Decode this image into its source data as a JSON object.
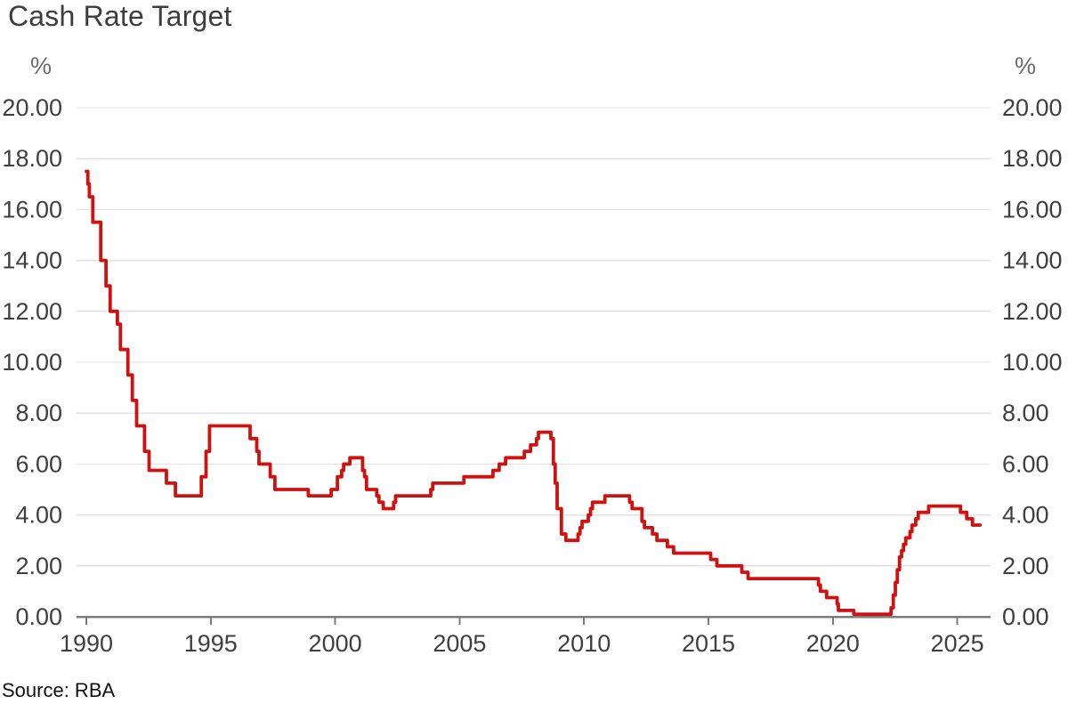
{
  "title": "Cash Rate Target",
  "source_label": "Source: RBA",
  "y_axis": {
    "unit": "%",
    "tick_values": [
      0,
      2,
      4,
      6,
      8,
      10,
      12,
      14,
      16,
      18,
      20
    ],
    "tick_labels": [
      "0.00",
      "2.00",
      "4.00",
      "6.00",
      "8.00",
      "10.00",
      "12.00",
      "14.00",
      "16.00",
      "18.00",
      "20.00"
    ],
    "min": 0,
    "max": 20
  },
  "x_axis": {
    "tick_years": [
      1990,
      1995,
      2000,
      2005,
      2010,
      2015,
      2020,
      2025
    ],
    "tick_labels": [
      "1990",
      "1995",
      "2000",
      "2005",
      "2010",
      "2015",
      "2020",
      "2025"
    ]
  },
  "colors": {
    "line": "#cf1110",
    "grid": "#e2e2e2",
    "axis": "#7c7c7c",
    "tick_text": "#3f3f3f",
    "unit_text": "#6a6a6a",
    "title_text": "#3d3d3d"
  },
  "chart_data": {
    "type": "line",
    "style": "step-after",
    "title": "Cash Rate Target",
    "ylabel": "%",
    "ylim": [
      0,
      20
    ],
    "xlim": [
      1989.6,
      2026.3
    ],
    "grid": "horizontal",
    "legend": "none",
    "series": [
      {
        "name": "Cash Rate Target (%)",
        "points": [
          [
            1990.0,
            17.5
          ],
          [
            1990.06,
            17.0
          ],
          [
            1990.12,
            16.5
          ],
          [
            1990.26,
            15.5
          ],
          [
            1990.58,
            14.0
          ],
          [
            1990.79,
            13.0
          ],
          [
            1990.96,
            12.0
          ],
          [
            1991.25,
            11.5
          ],
          [
            1991.37,
            10.5
          ],
          [
            1991.67,
            9.5
          ],
          [
            1991.85,
            8.5
          ],
          [
            1992.02,
            7.5
          ],
          [
            1992.34,
            6.5
          ],
          [
            1992.52,
            5.75
          ],
          [
            1993.22,
            5.25
          ],
          [
            1993.58,
            4.75
          ],
          [
            1994.62,
            5.5
          ],
          [
            1994.81,
            6.5
          ],
          [
            1994.95,
            7.5
          ],
          [
            1996.58,
            7.0
          ],
          [
            1996.85,
            6.5
          ],
          [
            1996.94,
            6.0
          ],
          [
            1997.39,
            5.5
          ],
          [
            1997.58,
            5.0
          ],
          [
            1998.92,
            4.75
          ],
          [
            1999.84,
            5.0
          ],
          [
            2000.09,
            5.5
          ],
          [
            2000.26,
            5.75
          ],
          [
            2000.34,
            6.0
          ],
          [
            2000.59,
            6.25
          ],
          [
            2001.1,
            5.75
          ],
          [
            2001.18,
            5.5
          ],
          [
            2001.26,
            5.0
          ],
          [
            2001.67,
            4.75
          ],
          [
            2001.76,
            4.5
          ],
          [
            2001.93,
            4.25
          ],
          [
            2002.35,
            4.5
          ],
          [
            2002.43,
            4.75
          ],
          [
            2003.84,
            5.0
          ],
          [
            2003.92,
            5.25
          ],
          [
            2005.17,
            5.5
          ],
          [
            2006.34,
            5.75
          ],
          [
            2006.59,
            6.0
          ],
          [
            2006.85,
            6.25
          ],
          [
            2007.6,
            6.5
          ],
          [
            2007.85,
            6.75
          ],
          [
            2008.09,
            7.0
          ],
          [
            2008.17,
            7.25
          ],
          [
            2008.67,
            7.0
          ],
          [
            2008.77,
            6.0
          ],
          [
            2008.84,
            5.25
          ],
          [
            2008.92,
            4.25
          ],
          [
            2009.09,
            3.25
          ],
          [
            2009.27,
            3.0
          ],
          [
            2009.76,
            3.25
          ],
          [
            2009.84,
            3.5
          ],
          [
            2009.92,
            3.75
          ],
          [
            2010.17,
            4.0
          ],
          [
            2010.26,
            4.25
          ],
          [
            2010.34,
            4.5
          ],
          [
            2010.84,
            4.75
          ],
          [
            2011.83,
            4.5
          ],
          [
            2011.93,
            4.25
          ],
          [
            2012.33,
            3.75
          ],
          [
            2012.43,
            3.5
          ],
          [
            2012.75,
            3.25
          ],
          [
            2012.93,
            3.0
          ],
          [
            2013.35,
            2.75
          ],
          [
            2013.6,
            2.5
          ],
          [
            2015.09,
            2.25
          ],
          [
            2015.34,
            2.0
          ],
          [
            2016.34,
            1.75
          ],
          [
            2016.59,
            1.5
          ],
          [
            2019.42,
            1.25
          ],
          [
            2019.5,
            1.0
          ],
          [
            2019.75,
            0.75
          ],
          [
            2020.17,
            0.5
          ],
          [
            2020.22,
            0.25
          ],
          [
            2020.84,
            0.1
          ],
          [
            2022.34,
            0.35
          ],
          [
            2022.43,
            0.85
          ],
          [
            2022.51,
            1.35
          ],
          [
            2022.59,
            1.85
          ],
          [
            2022.68,
            2.35
          ],
          [
            2022.76,
            2.6
          ],
          [
            2022.84,
            2.85
          ],
          [
            2022.93,
            3.1
          ],
          [
            2023.1,
            3.35
          ],
          [
            2023.18,
            3.6
          ],
          [
            2023.33,
            3.85
          ],
          [
            2023.43,
            4.1
          ],
          [
            2023.85,
            4.35
          ],
          [
            2025.13,
            4.1
          ],
          [
            2025.38,
            3.85
          ],
          [
            2025.61,
            3.6
          ],
          [
            2025.92,
            3.6
          ]
        ]
      }
    ]
  }
}
